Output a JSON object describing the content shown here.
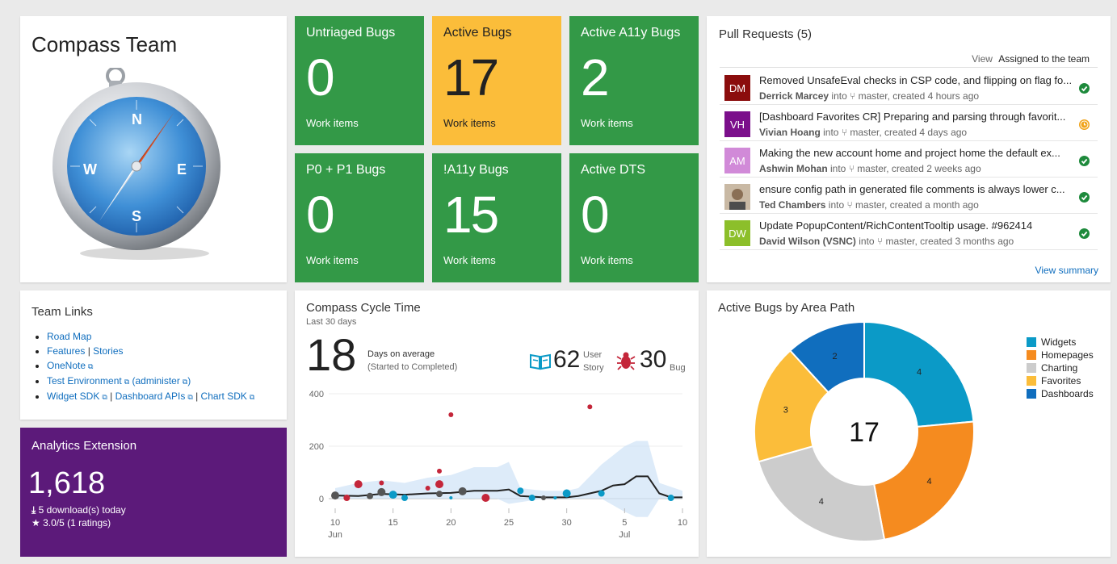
{
  "team": {
    "title": "Compass Team"
  },
  "tiles": [
    {
      "title": "Untriaged Bugs",
      "count": "0",
      "sub": "Work items"
    },
    {
      "title": "Active Bugs",
      "count": "17",
      "sub": "Work items"
    },
    {
      "title": "Active A11y Bugs",
      "count": "2",
      "sub": "Work items"
    },
    {
      "title": "P0 + P1 Bugs",
      "count": "0",
      "sub": "Work items"
    },
    {
      "title": "!A11y Bugs",
      "count": "15",
      "sub": "Work items"
    },
    {
      "title": "Active DTS",
      "count": "0",
      "sub": "Work items"
    }
  ],
  "colors": {
    "green": "#339947",
    "yellow": "#fbbd3a",
    "purple": "#5c1a7a",
    "link": "#106ebe"
  },
  "pull_requests": {
    "title": "Pull Requests (5)",
    "view_label": "View",
    "view_value": "Assigned to the team",
    "view_summary": "View summary",
    "into": "into",
    "items": [
      {
        "initials": "DM",
        "avatar_color": "#8b0d0d",
        "title": "Removed UnsafeEval checks in CSP code, and flipping on flag fo...",
        "author": "Derrick Marcey",
        "branch": "master",
        "created": "created 4 hours ago",
        "status": "succeeded",
        "status_color": "#1e8a3c"
      },
      {
        "initials": "VH",
        "avatar_color": "#7b0f8b",
        "title": "[Dashboard Favorites CR] Preparing and parsing through favorit...",
        "author": "Vivian Hoang",
        "branch": "master",
        "created": "created 4 days ago",
        "status": "pending",
        "status_color": "#f0a31a"
      },
      {
        "initials": "AM",
        "avatar_color": "#d18ad8",
        "title": "Making the new account home and project home the default ex...",
        "author": "Ashwin Mohan",
        "branch": "master",
        "created": "created 2 weeks ago",
        "status": "succeeded",
        "status_color": "#1e8a3c"
      },
      {
        "initials": "",
        "avatar_color": "#9b8570",
        "title": "ensure config path in generated file comments is always lower c...",
        "author": "Ted Chambers",
        "branch": "master",
        "created": "created a month ago",
        "status": "succeeded",
        "status_color": "#1e8a3c"
      },
      {
        "initials": "DW",
        "avatar_color": "#8cbf2a",
        "title": "Update PopupContent/RichContentTooltip usage. #962414",
        "author": "David Wilson (VSNC)",
        "branch": "master",
        "created": "created 3 months ago",
        "status": "succeeded",
        "status_color": "#1e8a3c"
      }
    ]
  },
  "team_links": {
    "title": "Team Links",
    "items": [
      {
        "parts": [
          "Road Map"
        ]
      },
      {
        "parts": [
          "Features",
          "Stories"
        ]
      },
      {
        "parts": [
          "OneNote"
        ]
      },
      {
        "parts": [
          "Test Environment",
          "administer"
        ]
      },
      {
        "parts": [
          "Widget SDK",
          "Dashboard APIs",
          "Chart SDK"
        ]
      }
    ]
  },
  "analytics": {
    "title": "Analytics Extension",
    "count": "1,618",
    "downloads": "5 download(s) today",
    "rating": "3.0/5 (1 ratings)"
  },
  "cycle_time": {
    "title": "Compass Cycle Time",
    "subtitle": "Last 30 days",
    "avg_days": "18",
    "avg_label": "Days on average",
    "avg_sub": "(Started to Completed)",
    "user_story_count": "62",
    "user_story_label_1": "User",
    "user_story_label_2": "Story",
    "bug_count": "30",
    "bug_label": "Bug"
  },
  "chart_data": [
    {
      "type": "scatter",
      "title": "Compass Cycle Time",
      "xlabel": "",
      "ylabel": "",
      "x_ticks": [
        "10",
        "15",
        "20",
        "25",
        "30",
        "5",
        "10"
      ],
      "x_tick_days": [
        10,
        15,
        20,
        25,
        30,
        35,
        40
      ],
      "x_month_labels": [
        {
          "label": "Jun",
          "day": 10
        },
        {
          "label": "Jul",
          "day": 35
        }
      ],
      "y_ticks": [
        "0",
        "200",
        "400"
      ],
      "ylim": [
        0,
        400
      ],
      "xlim": [
        10,
        40
      ],
      "series": [
        {
          "name": "Bug",
          "color": "#c4263a",
          "points": [
            [
              11,
              3,
              4
            ],
            [
              12,
              55,
              5
            ],
            [
              14,
              60,
              3
            ],
            [
              18,
              40,
              3
            ],
            [
              19,
              55,
              5
            ],
            [
              19,
              105,
              3
            ],
            [
              20,
              320,
              3
            ],
            [
              23,
              3,
              5
            ],
            [
              32,
              350,
              3
            ]
          ]
        },
        {
          "name": "User Story",
          "color": "#0b9ac7",
          "points": [
            [
              15,
              15,
              5
            ],
            [
              16,
              3,
              4
            ],
            [
              20,
              3,
              2
            ],
            [
              26,
              30,
              4
            ],
            [
              27,
              3,
              4
            ],
            [
              29,
              3,
              2
            ],
            [
              30,
              20,
              5
            ],
            [
              33,
              20,
              4
            ],
            [
              39,
              3,
              4
            ]
          ]
        },
        {
          "name": "Multiple",
          "color": "#555555",
          "points": [
            [
              10,
              12,
              5
            ],
            [
              13,
              10,
              4
            ],
            [
              14,
              25,
              5
            ],
            [
              19,
              18,
              4
            ],
            [
              21,
              28,
              5
            ],
            [
              28,
              3,
              3
            ]
          ]
        },
        {
          "name": "Average",
          "color": "#222222",
          "line": [
            [
              10,
              12
            ],
            [
              12,
              10
            ],
            [
              14,
              18
            ],
            [
              16,
              15
            ],
            [
              18,
              20
            ],
            [
              20,
              22
            ],
            [
              22,
              30
            ],
            [
              24,
              30
            ],
            [
              25,
              35
            ],
            [
              26,
              10
            ],
            [
              28,
              5
            ],
            [
              30,
              5
            ],
            [
              31,
              10
            ],
            [
              33,
              30
            ],
            [
              34,
              50
            ],
            [
              35,
              55
            ],
            [
              36,
              85
            ],
            [
              37,
              85
            ],
            [
              38,
              20
            ],
            [
              39,
              5
            ],
            [
              40,
              5
            ]
          ]
        },
        {
          "name": "Range",
          "color": "#cfe3f6",
          "upper": [
            [
              10,
              40
            ],
            [
              12,
              60
            ],
            [
              14,
              70
            ],
            [
              16,
              60
            ],
            [
              18,
              80
            ],
            [
              20,
              90
            ],
            [
              22,
              120
            ],
            [
              24,
              120
            ],
            [
              25,
              140
            ],
            [
              26,
              40
            ],
            [
              28,
              30
            ],
            [
              30,
              30
            ],
            [
              31,
              40
            ],
            [
              33,
              130
            ],
            [
              35,
              200
            ],
            [
              36,
              220
            ],
            [
              37,
              220
            ],
            [
              38,
              60
            ],
            [
              40,
              30
            ]
          ],
          "lower": [
            [
              10,
              0
            ],
            [
              14,
              0
            ],
            [
              20,
              0
            ],
            [
              24,
              0
            ],
            [
              25,
              -20
            ],
            [
              28,
              0
            ],
            [
              33,
              0
            ],
            [
              35,
              -50
            ],
            [
              36,
              -70
            ],
            [
              37,
              -70
            ],
            [
              38,
              0
            ],
            [
              40,
              0
            ]
          ]
        }
      ]
    },
    {
      "type": "pie",
      "title": "Active Bugs by Area Path",
      "center_label": "17",
      "categories": [
        "Widgets",
        "Homepages",
        "Charting",
        "Favorites",
        "Dashboards"
      ],
      "values": [
        4,
        4,
        4,
        3,
        2
      ],
      "colors": [
        "#0b9ac7",
        "#f58b1f",
        "#cccccc",
        "#fbbd3a",
        "#106ebe"
      ],
      "legend": "top-right"
    }
  ]
}
